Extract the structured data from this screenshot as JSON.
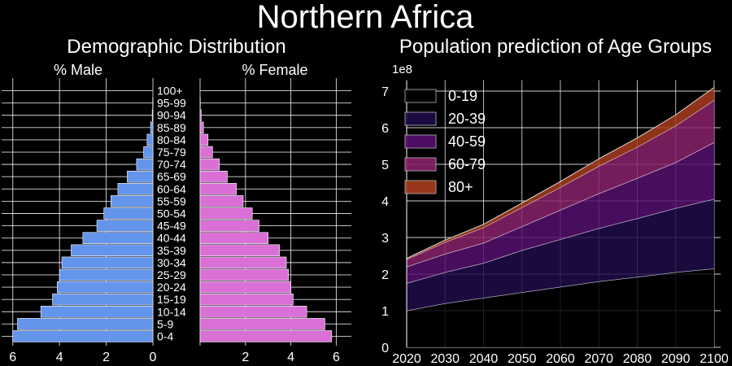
{
  "suptitle": "Northern Africa",
  "chart_data": [
    {
      "type": "bar",
      "orientation": "horizontal",
      "title": "Demographic Distribution",
      "male_label": "% Male",
      "female_label": "% Female",
      "categories": [
        "0-4",
        "5-9",
        "10-14",
        "15-19",
        "20-24",
        "25-29",
        "30-34",
        "35-39",
        "40-44",
        "45-49",
        "50-54",
        "55-59",
        "60-64",
        "65-69",
        "70-74",
        "75-79",
        "80-84",
        "85-89",
        "90-94",
        "95-99",
        "100+"
      ],
      "series": [
        {
          "name": "% Male",
          "values": [
            6.0,
            5.8,
            4.8,
            4.3,
            4.1,
            4.0,
            3.9,
            3.5,
            3.0,
            2.4,
            2.1,
            1.8,
            1.5,
            1.1,
            0.7,
            0.4,
            0.25,
            0.1,
            0.03,
            0.01,
            0.0
          ],
          "color": "#6495ed"
        },
        {
          "name": "% Female",
          "values": [
            5.8,
            5.5,
            4.7,
            4.1,
            4.0,
            3.9,
            3.8,
            3.5,
            3.0,
            2.6,
            2.3,
            1.9,
            1.6,
            1.2,
            0.85,
            0.55,
            0.35,
            0.15,
            0.05,
            0.01,
            0.0
          ],
          "color": "#da70d6"
        }
      ],
      "xticks": [
        "6",
        "4",
        "2",
        "0",
        "2",
        "4",
        "6"
      ],
      "xlim": [
        0,
        6.2
      ],
      "grid": true
    },
    {
      "type": "area",
      "stacked": true,
      "title": "Population prediction of Age Groups",
      "y_exponent_label": "1e8",
      "x": [
        2020,
        2030,
        2040,
        2050,
        2060,
        2070,
        2080,
        2090,
        2100
      ],
      "xticks": [
        "2020",
        "2030",
        "2040",
        "2050",
        "2060",
        "2070",
        "2080",
        "2090",
        "2100"
      ],
      "yticks": [
        "0",
        "1",
        "2",
        "3",
        "4",
        "5",
        "6",
        "7"
      ],
      "ylim": [
        0,
        7.3
      ],
      "legend_position": "upper-left",
      "grid": true,
      "series": [
        {
          "name": "0-19",
          "values": [
            1.0,
            1.2,
            1.35,
            1.5,
            1.65,
            1.8,
            1.92,
            2.05,
            2.15
          ],
          "color": "#000004"
        },
        {
          "name": "20-39",
          "values": [
            0.75,
            0.85,
            0.95,
            1.15,
            1.3,
            1.45,
            1.6,
            1.75,
            1.9
          ],
          "color": "#1f0c48"
        },
        {
          "name": "40-59",
          "values": [
            0.45,
            0.5,
            0.55,
            0.65,
            0.8,
            0.95,
            1.1,
            1.25,
            1.55
          ],
          "color": "#550f6d"
        },
        {
          "name": "60-79",
          "values": [
            0.2,
            0.32,
            0.42,
            0.52,
            0.62,
            0.75,
            0.85,
            1.0,
            1.15
          ],
          "color": "#88226a"
        },
        {
          "name": "80+",
          "values": [
            0.03,
            0.06,
            0.09,
            0.12,
            0.16,
            0.2,
            0.25,
            0.3,
            0.35
          ],
          "color": "#a83c1e"
        }
      ]
    }
  ]
}
